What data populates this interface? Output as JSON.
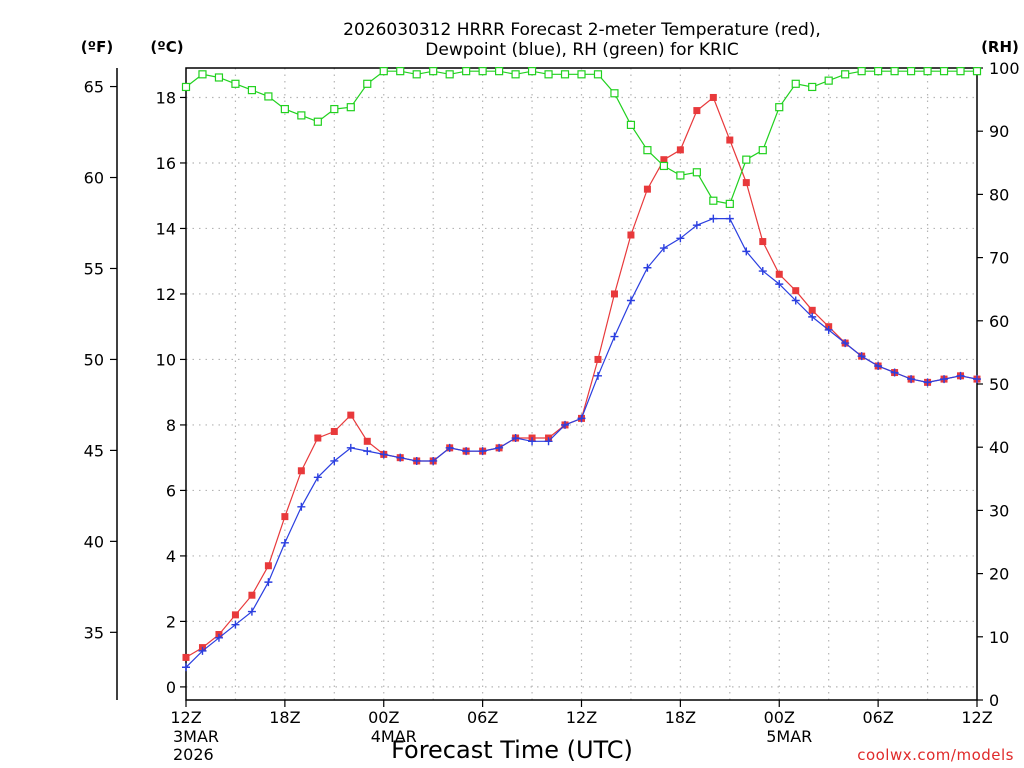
{
  "title": {
    "line1": "2026030312 HRRR Forecast 2-meter Temperature (red),",
    "line2": "Dewpoint (blue), RH (green) for KRIC"
  },
  "units": {
    "fahrenheit": "(ºF)",
    "celsius": "(ºC)",
    "rh": "(RH)"
  },
  "xlabel": "Forecast Time (UTC)",
  "credit": "coolwx.com/models",
  "colors": {
    "temperature": "#e8393b",
    "dewpoint": "#2b3fe0",
    "rh": "#21d11f",
    "grid": "#b5b5b5"
  },
  "chart_data": {
    "type": "line",
    "x": [
      0,
      1,
      2,
      3,
      4,
      5,
      6,
      7,
      8,
      9,
      10,
      11,
      12,
      13,
      14,
      15,
      16,
      17,
      18,
      19,
      20,
      21,
      22,
      23,
      24,
      25,
      26,
      27,
      28,
      29,
      30,
      31,
      32,
      33,
      34,
      35,
      36,
      37,
      38,
      39,
      40,
      41,
      42,
      43,
      44,
      45,
      46,
      47,
      48
    ],
    "xlim": [
      0,
      48
    ],
    "x_ticks": [
      {
        "x": 0,
        "label": "12Z",
        "date": "3MAR",
        "year": "2026"
      },
      {
        "x": 6,
        "label": "18Z",
        "date": "",
        "year": ""
      },
      {
        "x": 12,
        "label": "00Z",
        "date": "4MAR",
        "year": ""
      },
      {
        "x": 18,
        "label": "06Z",
        "date": "",
        "year": ""
      },
      {
        "x": 24,
        "label": "12Z",
        "date": "",
        "year": ""
      },
      {
        "x": 30,
        "label": "18Z",
        "date": "",
        "year": ""
      },
      {
        "x": 36,
        "label": "00Z",
        "date": "5MAR",
        "year": ""
      },
      {
        "x": 42,
        "label": "06Z",
        "date": "",
        "year": ""
      },
      {
        "x": 48,
        "label": "12Z",
        "date": "",
        "year": ""
      }
    ],
    "ylim_c": [
      -0.4,
      18.9
    ],
    "yticks_c": [
      "0",
      "2",
      "4",
      "6",
      "8",
      "10",
      "12",
      "14",
      "16",
      "18"
    ],
    "yticks_f": [
      "35",
      "40",
      "45",
      "50",
      "55",
      "60",
      "65"
    ],
    "ylim_rh": [
      0,
      100
    ],
    "yticks_rh": [
      "0",
      "10",
      "20",
      "30",
      "40",
      "50",
      "60",
      "70",
      "80",
      "90",
      "100"
    ],
    "series": [
      {
        "name": "2-meter Temperature (°C)",
        "color": "#e8393b",
        "marker": "filled-square",
        "values": [
          0.9,
          1.2,
          1.6,
          2.2,
          2.8,
          3.7,
          5.2,
          6.6,
          7.6,
          7.8,
          8.3,
          7.5,
          7.1,
          7.0,
          6.9,
          6.9,
          7.3,
          7.2,
          7.2,
          7.3,
          7.6,
          7.6,
          7.6,
          8.0,
          8.2,
          10.0,
          12.0,
          13.8,
          15.2,
          16.1,
          16.4,
          17.6,
          18.0,
          16.7,
          15.4,
          13.6,
          12.6,
          12.1,
          11.5,
          11.0,
          10.5,
          10.1,
          9.8,
          9.6,
          9.4,
          9.3,
          9.4,
          9.5,
          9.4
        ]
      },
      {
        "name": "Dewpoint (°C)",
        "color": "#2b3fe0",
        "marker": "plus",
        "values": [
          0.6,
          1.1,
          1.5,
          1.9,
          2.3,
          3.2,
          4.4,
          5.5,
          6.4,
          6.9,
          7.3,
          7.2,
          7.1,
          7.0,
          6.9,
          6.9,
          7.3,
          7.2,
          7.2,
          7.3,
          7.6,
          7.5,
          7.5,
          8.0,
          8.2,
          9.5,
          10.7,
          11.8,
          12.8,
          13.4,
          13.7,
          14.1,
          14.3,
          14.3,
          13.3,
          12.7,
          12.3,
          11.8,
          11.3,
          10.9,
          10.5,
          10.1,
          9.8,
          9.6,
          9.4,
          9.3,
          9.4,
          9.5,
          9.4
        ]
      },
      {
        "name": "RH (%)",
        "color": "#21d11f",
        "marker": "open-square",
        "values": [
          97,
          99,
          98.5,
          97.5,
          96.5,
          95.5,
          93.5,
          92.5,
          91.5,
          93.5,
          93.8,
          97.5,
          99.5,
          99.5,
          99,
          99.5,
          99,
          99.5,
          99.5,
          99.5,
          99,
          99.5,
          99,
          99,
          99,
          99,
          96,
          91,
          87,
          84.5,
          83,
          83.5,
          79,
          78.5,
          85.5,
          87,
          93.8,
          97.5,
          97,
          98,
          99,
          99.5,
          99.5,
          99.5,
          99.5,
          99.5,
          99.5,
          99.5,
          99.5
        ]
      }
    ]
  }
}
